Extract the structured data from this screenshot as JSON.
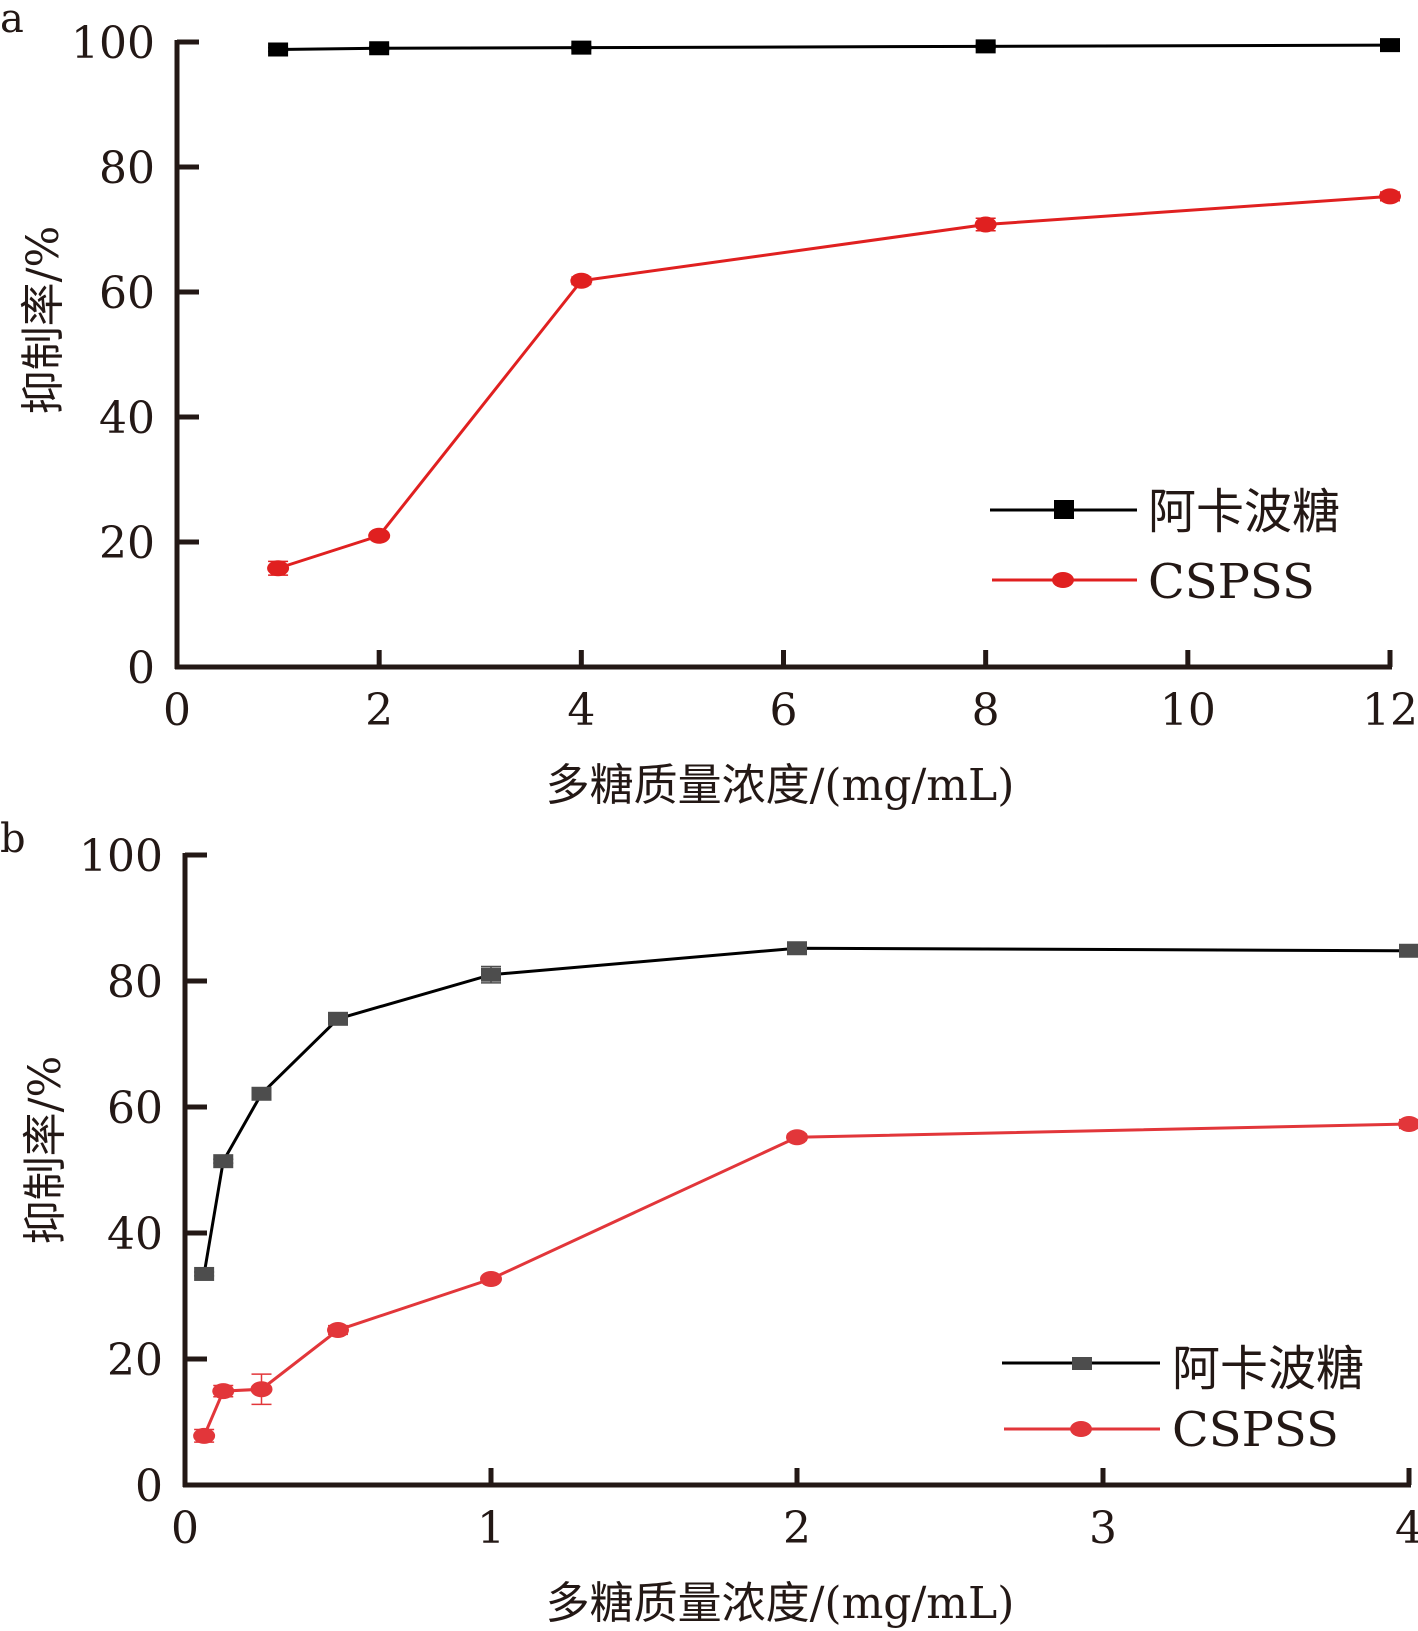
{
  "chart_data": [
    {
      "panel_label": "a",
      "type": "line",
      "title": "",
      "xlabel": "多糖质量浓度/(mg/mL)",
      "ylabel": "抑制率/%",
      "xlim": [
        0,
        12
      ],
      "ylim": [
        0,
        100
      ],
      "xticks": [
        0,
        2,
        4,
        6,
        8,
        10,
        12
      ],
      "yticks": [
        0,
        20,
        40,
        60,
        80,
        100
      ],
      "grid": false,
      "legend_position": "center-right",
      "x": [
        1,
        2,
        4,
        8,
        12
      ],
      "series": [
        {
          "name": "阿卡波糖",
          "marker": "square",
          "color": "#000000",
          "values": [
            98.8,
            99.0,
            99.1,
            99.3,
            99.5
          ],
          "errors": [
            0.3,
            0.3,
            0.3,
            0.3,
            0.3
          ]
        },
        {
          "name": "CSPSS",
          "marker": "circle",
          "color": "#e02020",
          "values": [
            15.8,
            21.0,
            61.8,
            70.8,
            75.3
          ],
          "errors": [
            1.1,
            0.4,
            0.6,
            1.0,
            0.7
          ]
        }
      ]
    },
    {
      "panel_label": "b",
      "type": "line",
      "title": "",
      "xlabel": "多糖质量浓度/(mg/mL)",
      "ylabel": "抑制率/%",
      "xlim": [
        0,
        4
      ],
      "ylim": [
        0,
        100
      ],
      "xticks": [
        0,
        1,
        2,
        3,
        4
      ],
      "yticks": [
        0,
        20,
        40,
        60,
        80,
        100
      ],
      "grid": false,
      "legend_position": "bottom-right",
      "x": [
        0.0625,
        0.125,
        0.25,
        0.5,
        1,
        2,
        4
      ],
      "series": [
        {
          "name": "阿卡波糖",
          "marker": "square",
          "color": "#4d4d4d",
          "values": [
            33.5,
            51.4,
            62.1,
            74.0,
            81.0,
            85.2,
            84.8
          ],
          "errors": [
            0.3,
            0.3,
            0.3,
            0.4,
            1.3,
            0.3,
            0.3
          ]
        },
        {
          "name": "CSPSS",
          "marker": "circle",
          "color": "#e2363a",
          "values": [
            7.8,
            14.9,
            15.2,
            24.6,
            32.7,
            55.2,
            57.3
          ],
          "errors": [
            1.0,
            0.9,
            2.4,
            0.7,
            0.4,
            0.5,
            0.7
          ]
        }
      ]
    }
  ]
}
